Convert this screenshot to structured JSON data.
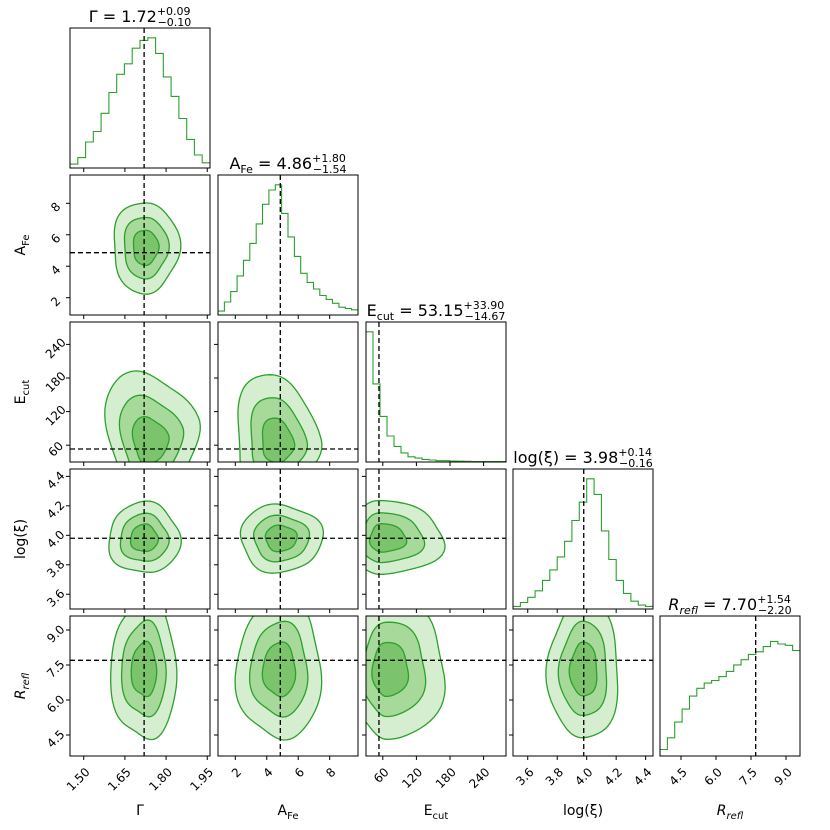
{
  "chart_data": {
    "type": "corner",
    "color": "#2ca02c",
    "params": [
      {
        "name": "Γ",
        "label_main": "Γ",
        "label_sub": "",
        "italic": false,
        "title": {
          "prefix": "Γ = 1.72",
          "plus": "+0.09",
          "minus": "−0.10"
        },
        "median": 1.72,
        "range": [
          1.45,
          1.96
        ],
        "ticks": [
          1.5,
          1.65,
          1.8,
          1.95
        ],
        "tick_labels": [
          "1.50",
          "1.65",
          "1.80",
          "1.95"
        ],
        "hist": [
          0.03,
          0.08,
          0.2,
          0.28,
          0.42,
          0.58,
          0.72,
          0.8,
          0.92,
          0.98,
          1.0,
          0.88,
          0.7,
          0.55,
          0.38,
          0.22,
          0.1,
          0.04
        ]
      },
      {
        "name": "A_Fe",
        "label_main": "A",
        "label_sub": "Fe",
        "italic": false,
        "title": {
          "prefix": "A",
          "sub": "Fe",
          "rest": " = 4.86",
          "plus": "+1.80",
          "minus": "−1.54"
        },
        "median": 4.86,
        "range": [
          0.9,
          9.8
        ],
        "ticks": [
          2,
          4,
          6,
          8
        ],
        "tick_labels": [
          "2",
          "4",
          "6",
          "8"
        ],
        "hist": [
          0.03,
          0.1,
          0.18,
          0.3,
          0.42,
          0.55,
          0.7,
          0.85,
          0.96,
          1.0,
          0.78,
          0.6,
          0.45,
          0.32,
          0.25,
          0.2,
          0.15,
          0.12,
          0.09,
          0.06,
          0.05,
          0.04
        ]
      },
      {
        "name": "E_cut",
        "label_main": "E",
        "label_sub": "cut",
        "italic": false,
        "title": {
          "prefix": "E",
          "sub": "cut",
          "rest": " = 53.15",
          "plus": "+33.90",
          "minus": "−14.67"
        },
        "median": 53.15,
        "range": [
          30,
          280
        ],
        "ticks": [
          60,
          120,
          180,
          240
        ],
        "tick_labels": [
          "60",
          "120",
          "180",
          "240"
        ],
        "hist": [
          1.0,
          0.6,
          0.35,
          0.2,
          0.12,
          0.07,
          0.04,
          0.03,
          0.02,
          0.015,
          0.01,
          0.01,
          0.008,
          0.006,
          0.005,
          0.004,
          0.004,
          0.003,
          0.003,
          0.003
        ]
      },
      {
        "name": "logxi",
        "label_main": "log(ξ)",
        "label_sub": "",
        "italic": false,
        "title": {
          "prefix": "log(ξ) = 3.98",
          "plus": "+0.14",
          "minus": "−0.16"
        },
        "median": 3.98,
        "range": [
          3.5,
          4.45
        ],
        "ticks": [
          3.6,
          3.8,
          4.0,
          4.2,
          4.4
        ],
        "tick_labels": [
          "3.6",
          "3.8",
          "4.0",
          "4.2",
          "4.4"
        ],
        "hist": [
          0.02,
          0.05,
          0.09,
          0.14,
          0.22,
          0.3,
          0.4,
          0.52,
          0.68,
          0.82,
          1.0,
          0.88,
          0.6,
          0.38,
          0.22,
          0.12,
          0.06,
          0.03,
          0.02
        ]
      },
      {
        "name": "R_refl",
        "label_main": "R",
        "label_sub": "refl",
        "italic": true,
        "title": {
          "prefix": "R",
          "sub": "refl",
          "rest": " = 7.70",
          "plus": "+1.54",
          "minus": "−2.20"
        },
        "median": 7.7,
        "range": [
          3.6,
          9.6
        ],
        "ticks": [
          4.5,
          6.0,
          7.5,
          9.0
        ],
        "tick_labels": [
          "4.5",
          "6.0",
          "7.5",
          "9.0"
        ],
        "hist": [
          0.05,
          0.14,
          0.26,
          0.36,
          0.46,
          0.52,
          0.56,
          0.58,
          0.61,
          0.65,
          0.7,
          0.74,
          0.78,
          0.8,
          0.84,
          0.88,
          0.86,
          0.85,
          0.81
        ]
      }
    ],
    "contours": {
      "1,0": {
        "c": [
          1.725,
          5.2
        ],
        "s": [
          0.12,
          2.9
        ],
        "rot": 0,
        "sk": [
          0,
          0
        ]
      },
      "2,0": {
        "c": [
          1.74,
          60
        ],
        "s": [
          0.14,
          85
        ],
        "rot": 25,
        "sk": [
          0.3,
          0.6
        ]
      },
      "2,1": {
        "c": [
          4.7,
          60
        ],
        "s": [
          2.6,
          80
        ],
        "rot": 10,
        "sk": [
          0,
          0.6
        ]
      },
      "3,0": {
        "c": [
          1.72,
          3.98
        ],
        "s": [
          0.13,
          0.24
        ],
        "rot": 0,
        "sk": [
          0,
          0
        ]
      },
      "3,1": {
        "c": [
          4.9,
          3.98
        ],
        "s": [
          2.6,
          0.23
        ],
        "rot": 38,
        "sk": [
          0,
          0
        ]
      },
      "3,2": {
        "c": [
          60,
          3.98
        ],
        "s": [
          60,
          0.25
        ],
        "rot": 0,
        "sk": [
          0.8,
          0
        ]
      },
      "4,0": {
        "c": [
          1.72,
          7.3
        ],
        "s": [
          0.12,
          3.0
        ],
        "rot": 0,
        "sk": [
          0,
          0
        ]
      },
      "4,1": {
        "c": [
          4.8,
          7.3
        ],
        "s": [
          2.7,
          3.0
        ],
        "rot": 0,
        "sk": [
          0,
          0
        ]
      },
      "4,2": {
        "c": [
          65,
          7.3
        ],
        "s": [
          60,
          3.0
        ],
        "rot": 0,
        "sk": [
          0.8,
          0
        ]
      },
      "4,3": {
        "c": [
          3.98,
          7.3
        ],
        "s": [
          0.24,
          3.0
        ],
        "rot": 0,
        "sk": [
          0,
          0
        ]
      }
    }
  }
}
